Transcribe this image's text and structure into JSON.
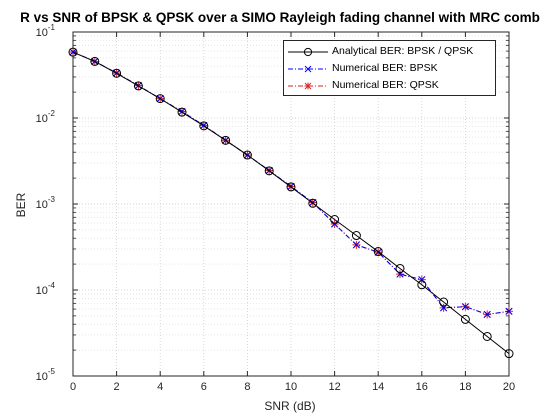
{
  "chart_data": {
    "type": "line",
    "title": "R vs SNR of BPSK & QPSK over a SIMO Rayleigh fading channel with MRC comb",
    "xlabel": "SNR (dB)",
    "ylabel": "BER",
    "xlim": [
      0,
      20
    ],
    "ylim": [
      1e-05,
      0.1
    ],
    "yscale": "log",
    "grid": true,
    "legend_position": "top-right",
    "xticks": [
      "0",
      "2",
      "4",
      "6",
      "8",
      "10",
      "12",
      "14",
      "16",
      "18",
      "20"
    ],
    "yticks": [
      {
        "base": "10",
        "exp": "-5"
      },
      {
        "base": "10",
        "exp": "-4"
      },
      {
        "base": "10",
        "exp": "-3"
      },
      {
        "base": "10",
        "exp": "-2"
      },
      {
        "base": "10",
        "exp": "-1"
      }
    ],
    "x": [
      0,
      1,
      2,
      3,
      4,
      5,
      6,
      7,
      8,
      9,
      10,
      11,
      12,
      13,
      14,
      15,
      16,
      17,
      18,
      19,
      20
    ],
    "series": [
      {
        "name": "Analytical BER: BPSK / QPSK",
        "color": "#000000",
        "style": "solid",
        "marker": "circle",
        "values": [
          0.0583,
          0.0455,
          0.0331,
          0.0236,
          0.0168,
          0.0117,
          0.0081,
          0.0055,
          0.00371,
          0.00243,
          0.00158,
          0.00102,
          0.00066,
          0.00043,
          0.00028,
          0.000178,
          0.000115,
          7.25e-05,
          4.55e-05,
          2.88e-05,
          1.82e-05
        ]
      },
      {
        "name": "Numerical BER: BPSK",
        "color": "#0000ff",
        "style": "dashdot",
        "marker": "x",
        "values": [
          0.0585,
          0.0455,
          0.0333,
          0.0238,
          0.0168,
          0.0119,
          0.0082,
          0.0055,
          0.00371,
          0.00245,
          0.0016,
          0.00104,
          0.000585,
          0.000335,
          0.000275,
          0.000153,
          0.000132,
          6.2e-05,
          6.4e-05,
          5.2e-05,
          5.65e-05
        ]
      },
      {
        "name": "Numerical BER: QPSK",
        "color": "#dd2222",
        "style": "dashdot",
        "marker": "asterisk",
        "values": [
          0.0585,
          0.0455,
          0.0333,
          0.0238,
          0.0168,
          0.0119,
          0.0082,
          0.0055,
          0.00371,
          0.00245,
          0.0016,
          0.00104,
          0.000585,
          0.000335,
          0.000275,
          0.000153,
          0.000132,
          6.2e-05,
          6.4e-05,
          5.2e-05,
          5.65e-05
        ]
      }
    ]
  }
}
